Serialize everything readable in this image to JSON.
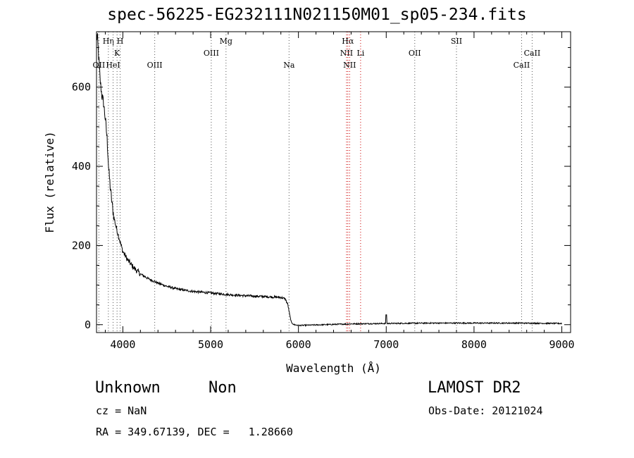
{
  "header": {
    "title": "spec-56225-EG232111N021150M01_sp05-234.fits"
  },
  "info": {
    "class": "Unknown",
    "subclass": "Non",
    "release": "LAMOST DR2",
    "cz": "cz = NaN",
    "obs_date": "Obs-Date: 20121024",
    "radec": "RA = 349.67139, DEC =   1.28660"
  },
  "chart_data": {
    "type": "line",
    "xlabel": "Wavelength (Å)",
    "ylabel": "Flux (relative)",
    "xlim": [
      3700,
      9100
    ],
    "ylim": [
      -20,
      740
    ],
    "x_ticks": [
      4000,
      5000,
      6000,
      7000,
      8000,
      9000
    ],
    "y_ticks": [
      0,
      200,
      400,
      600
    ],
    "grid": false,
    "line_color": "#000000",
    "marker_color_default": "#555555",
    "marker_color_halpha": "#cc0000",
    "spectrum": [
      [
        3700,
        720
      ],
      [
        3710,
        730
      ],
      [
        3720,
        690
      ],
      [
        3730,
        660
      ],
      [
        3740,
        620
      ],
      [
        3760,
        580
      ],
      [
        3780,
        560
      ],
      [
        3800,
        520
      ],
      [
        3820,
        470
      ],
      [
        3840,
        390
      ],
      [
        3860,
        340
      ],
      [
        3880,
        300
      ],
      [
        3900,
        270
      ],
      [
        3920,
        250
      ],
      [
        3950,
        225
      ],
      [
        3980,
        200
      ],
      [
        4000,
        185
      ],
      [
        4050,
        165
      ],
      [
        4100,
        150
      ],
      [
        4150,
        138
      ],
      [
        4200,
        128
      ],
      [
        4300,
        115
      ],
      [
        4400,
        105
      ],
      [
        4500,
        97
      ],
      [
        4600,
        91
      ],
      [
        4700,
        87
      ],
      [
        4800,
        84
      ],
      [
        5000,
        80
      ],
      [
        5200,
        76
      ],
      [
        5400,
        73
      ],
      [
        5600,
        71
      ],
      [
        5800,
        69
      ],
      [
        5850,
        65
      ],
      [
        5880,
        50
      ],
      [
        5900,
        25
      ],
      [
        5920,
        5
      ],
      [
        5950,
        0
      ],
      [
        6000,
        -2
      ],
      [
        6300,
        0
      ],
      [
        6600,
        2
      ],
      [
        7000,
        3
      ],
      [
        7500,
        4
      ],
      [
        8000,
        4
      ],
      [
        8500,
        4
      ],
      [
        9000,
        3
      ]
    ],
    "spike": {
      "x": 7000,
      "y": 25
    },
    "line_markers": [
      {
        "label": "OII",
        "x": 3727,
        "row": 3
      },
      {
        "label": "Hη",
        "x": 3835,
        "row": 1
      },
      {
        "label": "HeI",
        "x": 3889,
        "row": 3
      },
      {
        "label": "K",
        "x": 3934,
        "row": 2
      },
      {
        "label": "H",
        "x": 3969,
        "row": 1
      },
      {
        "label": "OIII",
        "x": 4363,
        "row": 3
      },
      {
        "label": "OIII",
        "x": 5007,
        "row": 2
      },
      {
        "label": "Mg",
        "x": 5175,
        "row": 1
      },
      {
        "label": "Na",
        "x": 5893,
        "row": 3
      },
      {
        "label": "NII",
        "x": 6548,
        "row": 2,
        "color": "red"
      },
      {
        "label": "Hα",
        "x": 6563,
        "row": 1,
        "color": "red"
      },
      {
        "label": "NII",
        "x": 6583,
        "row": 3,
        "color": "red"
      },
      {
        "label": "Li",
        "x": 6708,
        "row": 2,
        "color": "red"
      },
      {
        "label": "OII",
        "x": 7325,
        "row": 2
      },
      {
        "label": "SII",
        "x": 7800,
        "row": 1
      },
      {
        "label": "CaII",
        "x": 8542,
        "row": 3
      },
      {
        "label": "CaII",
        "x": 8662,
        "row": 2
      }
    ]
  }
}
